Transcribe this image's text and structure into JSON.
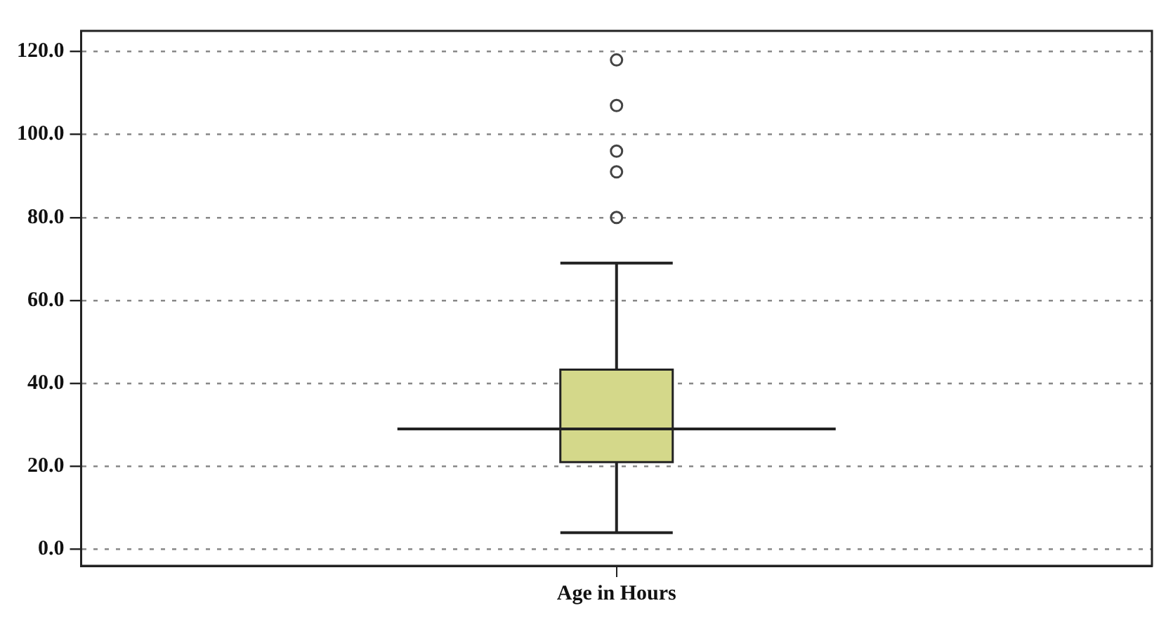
{
  "chart_data": {
    "type": "box",
    "categories": [
      "Age in Hours"
    ],
    "color": "#d4d88a",
    "boxes": [
      {
        "low": 4,
        "q1": 21,
        "median": 29,
        "q3": 43.3,
        "high": 69,
        "outliers": [
          80,
          91,
          96,
          107,
          118
        ]
      }
    ],
    "ylim": [
      -4,
      125
    ],
    "yticks": [
      {
        "value": 0,
        "label": "0.0"
      },
      {
        "value": 20,
        "label": "20.0"
      },
      {
        "value": 40,
        "label": "40.0"
      },
      {
        "value": 60,
        "label": "60.0"
      },
      {
        "value": 80,
        "label": "80.0"
      },
      {
        "value": 100,
        "label": "100.0"
      },
      {
        "value": 120,
        "label": "120.0"
      }
    ],
    "ref_lines": [
      {
        "axis": "y",
        "value": 29
      }
    ],
    "grid": "y"
  }
}
